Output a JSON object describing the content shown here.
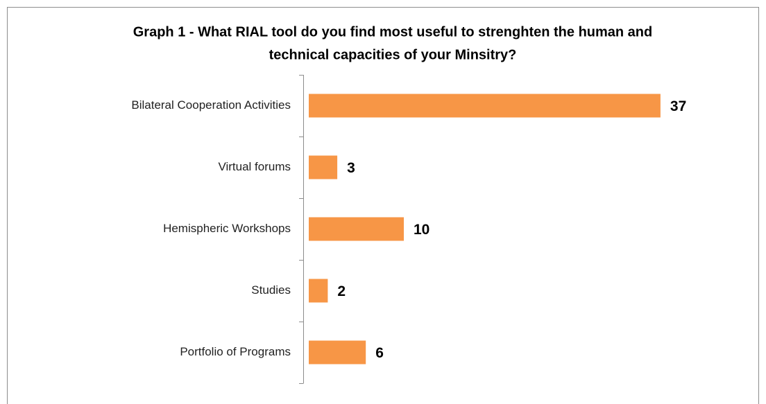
{
  "chart_data": {
    "type": "bar",
    "orientation": "horizontal",
    "title": [
      "Graph 1 - What RIAL tool do you find most useful to strenghten the human and",
      "technical capacities of your Minsitry?"
    ],
    "categories": [
      "Bilateral Cooperation Activities",
      "Virtual forums",
      "Hemispheric Workshops",
      "Studies",
      "Portfolio of Programs"
    ],
    "values": [
      37,
      3,
      10,
      2,
      6
    ],
    "color": "#f79646",
    "xlim": [
      0,
      40
    ]
  }
}
